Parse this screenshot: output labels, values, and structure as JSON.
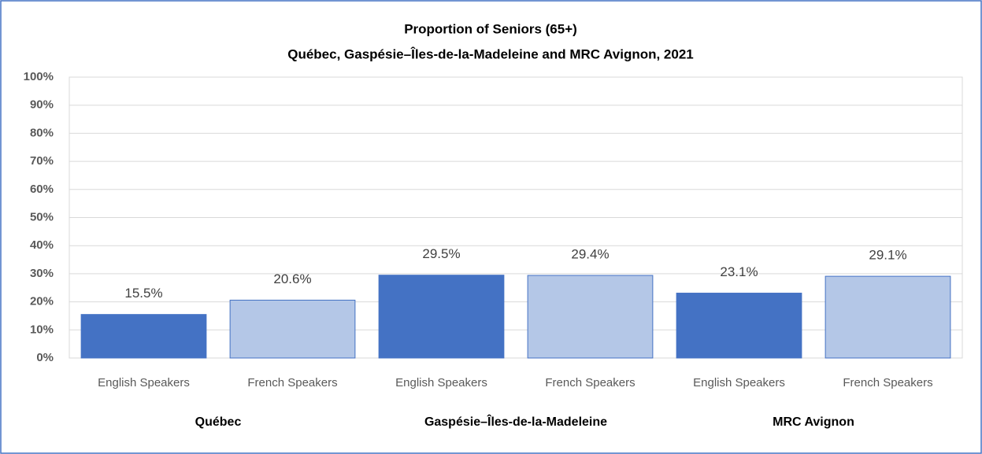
{
  "chart_data": {
    "type": "bar",
    "title": "Proportion of Seniors (65+)",
    "subtitle": "Québec, Gaspésie–Îles-de-la-Madeleine  and MRC Avignon, 2021",
    "categories": [
      "English Speakers",
      "French Speakers",
      "English Speakers",
      "French Speakers",
      "English Speakers",
      "French Speakers"
    ],
    "groups": [
      "Québec",
      "Gaspésie–Îles-de-la-Madeleine",
      "MRC Avignon"
    ],
    "values": [
      15.5,
      20.6,
      29.5,
      29.4,
      23.1,
      29.1
    ],
    "value_labels": [
      "15.5%",
      "20.6%",
      "29.5%",
      "29.4%",
      "23.1%",
      "29.1%"
    ],
    "colors": [
      "#4472c4",
      "#b4c7e7",
      "#4472c4",
      "#b4c7e7",
      "#4472c4",
      "#b4c7e7"
    ],
    "ylim": [
      0,
      100
    ],
    "yticks": [
      {
        "value": 0,
        "label": "0%"
      },
      {
        "value": 10,
        "label": "10%"
      },
      {
        "value": 20,
        "label": "20%"
      },
      {
        "value": 30,
        "label": "30%"
      },
      {
        "value": 40,
        "label": "40%"
      },
      {
        "value": 50,
        "label": "50%"
      },
      {
        "value": 60,
        "label": "60%"
      },
      {
        "value": 70,
        "label": "70%"
      },
      {
        "value": 80,
        "label": "80%"
      },
      {
        "value": 90,
        "label": "90%"
      },
      {
        "value": 100,
        "label": "100%"
      }
    ],
    "grid": true
  }
}
